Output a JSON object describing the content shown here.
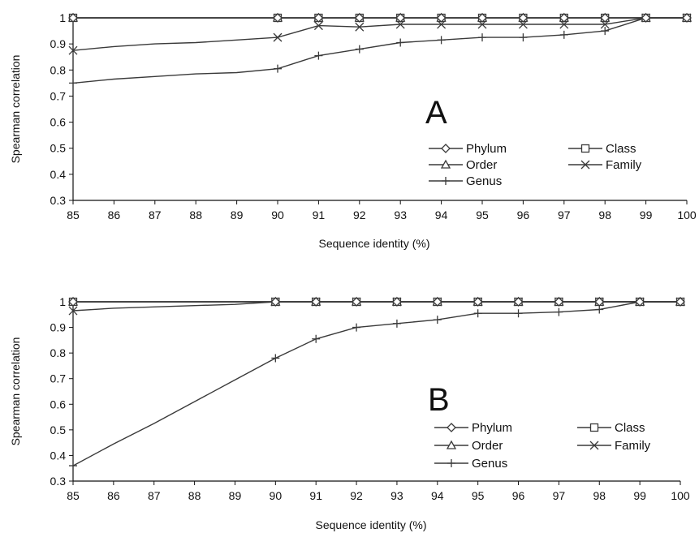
{
  "chart_data": [
    {
      "type": "line",
      "panel_label": "A",
      "xlabel": "Sequence identity (%)",
      "ylabel": "Spearman correlation",
      "ylim": [
        0.3,
        1
      ],
      "yticks": [
        0.3,
        0.4,
        0.5,
        0.6,
        0.7,
        0.8,
        0.9,
        1
      ],
      "x": [
        85,
        86,
        87,
        88,
        89,
        90,
        91,
        92,
        93,
        94,
        95,
        96,
        97,
        98,
        99,
        100
      ],
      "x_markers": [
        85,
        90,
        91,
        92,
        93,
        94,
        95,
        96,
        97,
        98,
        99,
        100
      ],
      "legend_position": "lower-right",
      "series": [
        {
          "name": "Phylum",
          "marker": "diamond",
          "values": [
            1,
            1,
            1,
            1,
            1,
            1,
            1,
            1,
            1,
            1,
            1,
            1,
            1,
            1,
            1,
            1
          ]
        },
        {
          "name": "Class",
          "marker": "square",
          "values": [
            1,
            1,
            1,
            1,
            1,
            1,
            1,
            1,
            1,
            1,
            1,
            1,
            1,
            1,
            1,
            1
          ]
        },
        {
          "name": "Order",
          "marker": "triangle",
          "values": [
            1,
            1,
            1,
            1,
            1,
            1,
            1,
            1,
            1,
            1,
            1,
            1,
            1,
            1,
            1,
            1
          ]
        },
        {
          "name": "Family",
          "marker": "x",
          "values": [
            0.875,
            0.89,
            0.9,
            0.905,
            0.915,
            0.925,
            0.97,
            0.965,
            0.975,
            0.975,
            0.975,
            0.975,
            0.975,
            0.975,
            1,
            1
          ]
        },
        {
          "name": "Genus",
          "marker": "plus",
          "values": [
            0.75,
            0.765,
            0.775,
            0.785,
            0.79,
            0.805,
            0.855,
            0.88,
            0.905,
            0.915,
            0.925,
            0.925,
            0.935,
            0.95,
            1,
            1
          ]
        }
      ]
    },
    {
      "type": "line",
      "panel_label": "B",
      "xlabel": "Sequence identity (%)",
      "ylabel": "Spearman correlation",
      "ylim": [
        0.3,
        1
      ],
      "yticks": [
        0.3,
        0.4,
        0.5,
        0.6,
        0.7,
        0.8,
        0.9,
        1
      ],
      "x": [
        85,
        86,
        87,
        88,
        89,
        90,
        91,
        92,
        93,
        94,
        95,
        96,
        97,
        98,
        99,
        100
      ],
      "x_markers": [
        85,
        90,
        91,
        92,
        93,
        94,
        95,
        96,
        97,
        98,
        99,
        100
      ],
      "legend_position": "lower-right",
      "series": [
        {
          "name": "Phylum",
          "marker": "diamond",
          "values": [
            1,
            1,
            1,
            1,
            1,
            1,
            1,
            1,
            1,
            1,
            1,
            1,
            1,
            1,
            1,
            1
          ]
        },
        {
          "name": "Class",
          "marker": "square",
          "values": [
            1,
            1,
            1,
            1,
            1,
            1,
            1,
            1,
            1,
            1,
            1,
            1,
            1,
            1,
            1,
            1
          ]
        },
        {
          "name": "Order",
          "marker": "triangle",
          "values": [
            1,
            1,
            1,
            1,
            1,
            1,
            1,
            1,
            1,
            1,
            1,
            1,
            1,
            1,
            1,
            1
          ]
        },
        {
          "name": "Family",
          "marker": "x",
          "values": [
            0.965,
            0.975,
            0.98,
            0.985,
            0.99,
            1,
            1,
            1,
            1,
            1,
            1,
            1,
            1,
            1,
            1,
            1
          ]
        },
        {
          "name": "Genus",
          "marker": "plus",
          "values": [
            0.36,
            0.445,
            0.525,
            0.61,
            0.695,
            0.78,
            0.855,
            0.9,
            0.915,
            0.93,
            0.955,
            0.955,
            0.96,
            0.97,
            1,
            1
          ]
        }
      ]
    }
  ],
  "colors": {
    "line": "#3a3a3a",
    "axis": "#111111",
    "text": "#111111",
    "background": "#ffffff"
  }
}
